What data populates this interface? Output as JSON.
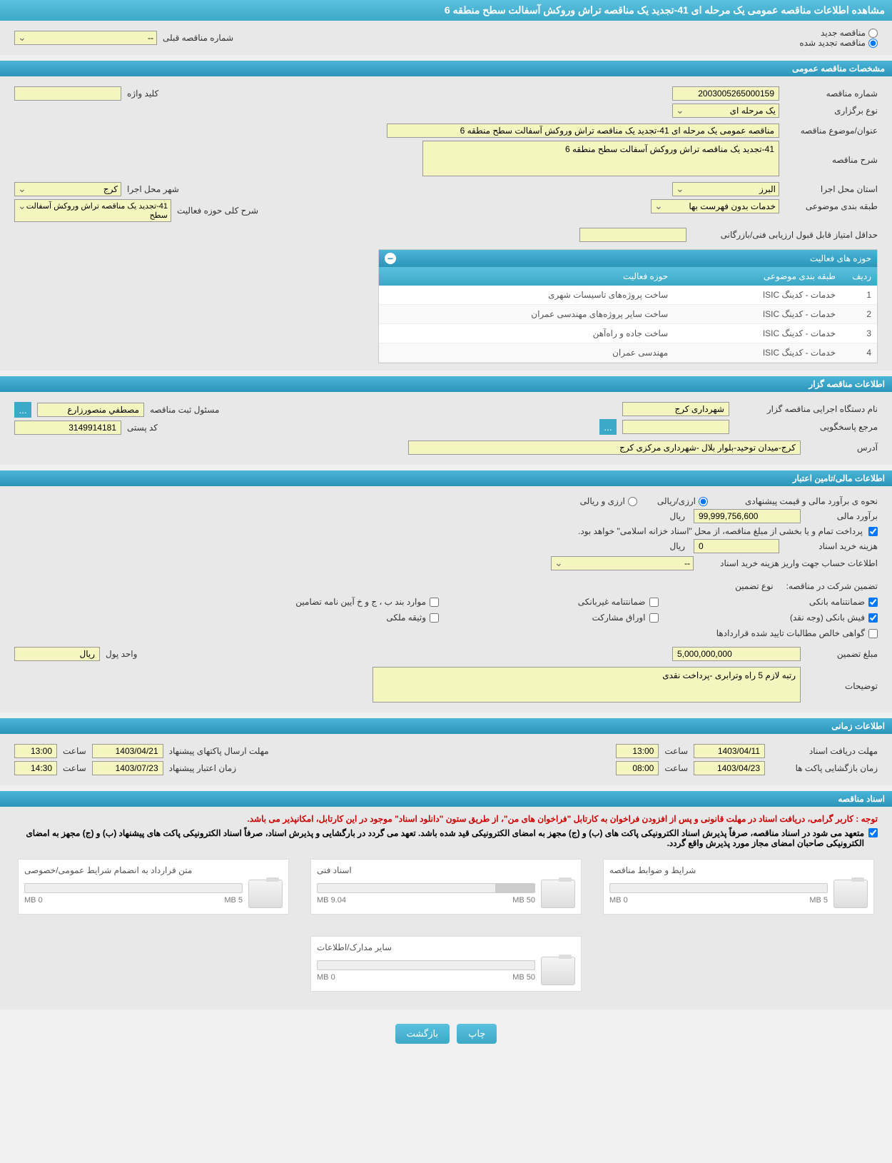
{
  "page_title": "مشاهده اطلاعات مناقصه عمومی یک مرحله ای 41-تجدید یک مناقصه تراش وروکش آسفالت سطح منطقه 6",
  "top_options": {
    "new_tender": "مناقصه جدید",
    "renewed_tender": "مناقصه تجدید شده",
    "prev_tender_number": "شماره مناقصه قبلی",
    "prev_tender_value": "--"
  },
  "sections": {
    "general": "مشخصات مناقصه عمومی",
    "organizer": "اطلاعات مناقصه گزار",
    "financial": "اطلاعات مالی/تامین اعتبار",
    "timing": "اطلاعات زمانی",
    "documents": "اسناد مناقصه"
  },
  "general": {
    "tender_number_label": "شماره مناقصه",
    "tender_number": "2003005265000159",
    "keyword_label": "کلید واژه",
    "keyword": "",
    "holding_type_label": "نوع برگزاری",
    "holding_type": "یک مرحله ای",
    "subject_label": "عنوان/موضوع مناقصه",
    "subject": "مناقصه عمومی یک مرحله ای 41-تجدید یک مناقصه تراش وروکش آسفالت سطح منطقه 6",
    "description_label": "شرح مناقصه",
    "description": "41-تجدید یک مناقصه تراش وروکش آسفالت سطح منطقه 6",
    "province_label": "استان محل اجرا",
    "province": "البرز",
    "city_label": "شهر محل اجرا",
    "city": "کرج",
    "classification_label": "طبقه بندی موضوعی",
    "classification": "خدمات بدون فهرست بها",
    "activity_scope_label": "شرح کلی حوزه فعالیت",
    "activity_scope": "41-تجدید یک مناقصه تراش وروکش آسفالت سطح",
    "min_score_label": "حداقل امتیاز قابل قبول ارزیابی فنی/بازرگانی",
    "min_score": ""
  },
  "activity_table": {
    "title": "حوزه های فعالیت",
    "headers": {
      "row": "ردیف",
      "classification": "طبقه بندی موضوعی",
      "activity": "حوزه فعالیت"
    },
    "rows": [
      {
        "row": "1",
        "classification": "خدمات - کدینگ ISIC",
        "activity": "ساخت پروژه‌های تاسیسات شهری"
      },
      {
        "row": "2",
        "classification": "خدمات - کدینگ ISIC",
        "activity": "ساخت سایر پروژه‌های مهندسی عمران"
      },
      {
        "row": "3",
        "classification": "خدمات - کدینگ ISIC",
        "activity": "ساخت جاده و راه‌آهن"
      },
      {
        "row": "4",
        "classification": "خدمات - کدینگ ISIC",
        "activity": "مهندسی عمران"
      }
    ]
  },
  "organizer": {
    "org_name_label": "نام دستگاه اجرایی مناقصه گزار",
    "org_name": "شهرداری کرج",
    "registrar_label": "مسئول ثبت مناقصه",
    "registrar": "مصطفي منصورزارع",
    "responder_label": "مرجع پاسخگویی",
    "responder": "",
    "postal_code_label": "کد پستی",
    "postal_code": "3149914181",
    "address_label": "آدرس",
    "address": "کرج-میدان توحید-بلوار بلال -شهرداری مرکزی کرج"
  },
  "financial": {
    "estimate_method_label": "نحوه ی برآورد مالی و قیمت پیشنهادی",
    "currency_rial": "ارزی/ریالی",
    "currency_foreign": "ارزی و ریالی",
    "estimate_label": "برآورد مالی",
    "estimate_value": "99,999,756,600",
    "currency_unit": "ریال",
    "payment_note": "پرداخت تمام و یا بخشی از مبلغ مناقصه، از محل \"اسناد خزانه اسلامی\" خواهد بود.",
    "purchase_cost_label": "هزینه خرید اسناد",
    "purchase_cost": "0",
    "payment_account_label": "اطلاعات حساب جهت واریز هزینه خرید اسناد",
    "payment_account": "--",
    "guarantee_label": "تضمین شرکت در مناقصه:",
    "guarantee_type_label": "نوع تضمین",
    "guarantees": {
      "bank_guarantee": "ضمانتنامه بانکی",
      "nonbank_guarantee": "ضمانتنامه غیربانکی",
      "items_bpj": "موارد بند ب ، ج و خ آیین نامه تضامین",
      "bank_receipt": "فیش بانکی (وجه نقد)",
      "participation_papers": "اوراق مشارکت",
      "property_bond": "وثیقه ملکی",
      "confirmed_claims": "گواهی خالص مطالبات تایید شده قراردادها"
    },
    "guarantee_amount_label": "مبلغ تضمین",
    "guarantee_amount": "5,000,000,000",
    "currency_unit_label": "واحد پول",
    "currency_unit_value": "ریال",
    "notes_label": "توضیحات",
    "notes": "رتبه لازم 5 راه وترابری -پرداخت نقدی"
  },
  "timing": {
    "doc_receive_label": "مهلت دریافت اسناد",
    "doc_receive_date": "1403/04/11",
    "doc_receive_time": "13:00",
    "packet_send_label": "مهلت ارسال پاکتهای پیشنهاد",
    "packet_send_date": "1403/04/21",
    "packet_send_time": "13:00",
    "packet_open_label": "زمان بازگشایی پاکت ها",
    "packet_open_date": "1403/04/23",
    "packet_open_time": "08:00",
    "offer_validity_label": "زمان اعتبار پیشنهاد",
    "offer_validity_date": "1403/07/23",
    "offer_validity_time": "14:30",
    "time_label": "ساعت"
  },
  "documents": {
    "warning": "توجه : کاربر گرامی، دریافت اسناد در مهلت قانونی و پس از افزودن فراخوان به کارتابل \"فراخوان های من\"، از طریق ستون \"دانلود اسناد\" موجود در این کارتابل، امکانپذیر می باشد.",
    "commitment": "متعهد می شود در اسناد مناقصه، صرفاً پذیرش اسناد الکترونیکی پاکت های (ب) و (ج) مجهز به امضای الکترونیکی قید شده باشد. تعهد می گردد در بارگشایی و پذیرش اسناد، صرفاً اسناد الکترونیکی پاکت های پیشنهاد (ب) و (ج) مجهز به امضای الکترونیکی صاحبان امضای مجاز مورد پذیرش واقع گردد.",
    "items": [
      {
        "title": "شرایط و ضوابط مناقصه",
        "used": "0 MB",
        "total": "5 MB",
        "fill": 0
      },
      {
        "title": "اسناد فنی",
        "used": "9.04 MB",
        "total": "50 MB",
        "fill": 18
      },
      {
        "title": "متن قرارداد به انضمام شرایط عمومی/خصوصی",
        "used": "0 MB",
        "total": "5 MB",
        "fill": 0
      },
      {
        "title": "سایر مدارک/اطلاعات",
        "used": "0 MB",
        "total": "50 MB",
        "fill": 0
      }
    ]
  },
  "buttons": {
    "print": "چاپ",
    "back": "بازگشت",
    "ellipsis": "..."
  },
  "colors": {
    "header_bg": "#3ba9c7",
    "field_bg": "#f5f5c0",
    "page_bg": "#e8e8e8"
  }
}
